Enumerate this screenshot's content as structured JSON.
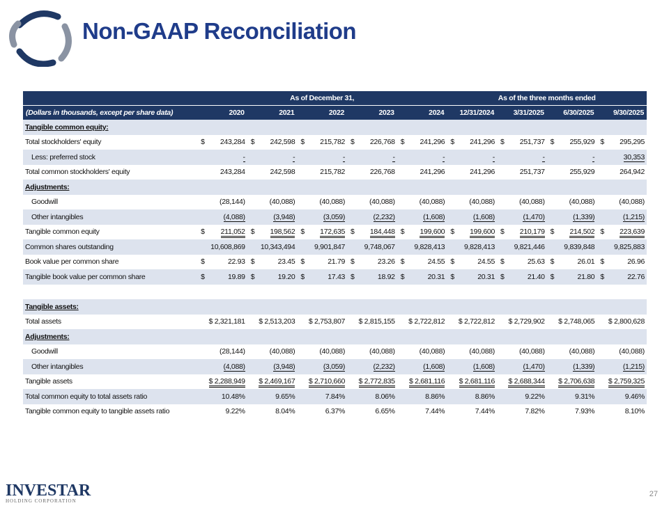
{
  "header": {
    "title": "Non-GAAP Reconciliation"
  },
  "table": {
    "groups": [
      "As of December 31,",
      "As of the three months ended"
    ],
    "unit_note": "(Dollars in thousands, except per share data)",
    "columns": [
      "2020",
      "2021",
      "2022",
      "2023",
      "2024",
      "12/31/2024",
      "3/31/2025",
      "6/30/2025",
      "9/30/2025"
    ],
    "rows": [
      {
        "label": "Tangible common equity:"
      },
      {
        "label": "Total stockholders' equity",
        "currency": "$",
        "cells": [
          "243,284",
          "242,598",
          "215,782",
          "226,768",
          "241,296",
          "241,296",
          "251,737",
          "255,929",
          "295,295"
        ]
      },
      {
        "label": "Less: preferred stock",
        "cells": [
          "-",
          "-",
          "-",
          "-",
          "-",
          "-",
          "-",
          "-",
          "30,353"
        ]
      },
      {
        "label": "Total common stockholders' equity",
        "cells": [
          "243,284",
          "242,598",
          "215,782",
          "226,768",
          "241,296",
          "241,296",
          "251,737",
          "255,929",
          "264,942"
        ]
      },
      {
        "label": "Adjustments:"
      },
      {
        "label": "Goodwill",
        "cells": [
          "(28,144)",
          "(40,088)",
          "(40,088)",
          "(40,088)",
          "(40,088)",
          "(40,088)",
          "(40,088)",
          "(40,088)",
          "(40,088)"
        ]
      },
      {
        "label": "Other intangibles",
        "cells": [
          "(4,088)",
          "(3,948)",
          "(3,059)",
          "(2,232)",
          "(1,608)",
          "(1,608)",
          "(1,470)",
          "(1,339)",
          "(1,215)"
        ]
      },
      {
        "label": "Tangible common equity",
        "currency": "$",
        "cells": [
          "211,052",
          "198,562",
          "172,635",
          "184,448",
          "199,600",
          "199,600",
          "210,179",
          "214,502",
          "223,639"
        ]
      },
      {
        "label": "Common shares outstanding",
        "cells": [
          "10,608,869",
          "10,343,494",
          "9,901,847",
          "9,748,067",
          "9,828,413",
          "9,828,413",
          "9,821,446",
          "9,839,848",
          "9,825,883"
        ]
      },
      {
        "label": "Book value per common share",
        "currency": "$",
        "cells": [
          "22.93",
          "23.45",
          "21.79",
          "23.26",
          "24.55",
          "24.55",
          "25.63",
          "26.01",
          "26.96"
        ]
      },
      {
        "label": "Tangible book value per common share",
        "currency": "$",
        "cells": [
          "19.89",
          "19.20",
          "17.43",
          "18.92",
          "20.31",
          "20.31",
          "21.40",
          "21.80",
          "22.76"
        ]
      },
      {
        "label": ""
      },
      {
        "label": "Tangible assets:"
      },
      {
        "label": "Total assets",
        "cells": [
          "$ 2,321,181",
          "$ 2,513,203",
          "$ 2,753,807",
          "$ 2,815,155",
          "$ 2,722,812",
          "$ 2,722,812",
          "$ 2,729,902",
          "$ 2,748,065",
          "$ 2,800,628"
        ]
      },
      {
        "label": "Adjustments:"
      },
      {
        "label": "Goodwill",
        "cells": [
          "(28,144)",
          "(40,088)",
          "(40,088)",
          "(40,088)",
          "(40,088)",
          "(40,088)",
          "(40,088)",
          "(40,088)",
          "(40,088)"
        ]
      },
      {
        "label": "Other intangibles",
        "cells": [
          "(4,088)",
          "(3,948)",
          "(3,059)",
          "(2,232)",
          "(1,608)",
          "(1,608)",
          "(1,470)",
          "(1,339)",
          "(1,215)"
        ]
      },
      {
        "label": "Tangible assets",
        "cells": [
          "$ 2,288,949",
          "$ 2,469,167",
          "$ 2,710,660",
          "$ 2,772,835",
          "$ 2,681,116",
          "$ 2,681,116",
          "$ 2,688,344",
          "$ 2,706,638",
          "$ 2,759,325"
        ]
      },
      {
        "label": "Total common equity to total assets ratio",
        "cells": [
          "10.48%",
          "9.65%",
          "7.84%",
          "8.06%",
          "8.86%",
          "8.86%",
          "9.22%",
          "9.31%",
          "9.46%"
        ]
      },
      {
        "label": "Tangible common equity to tangible assets ratio",
        "cells": [
          "9.22%",
          "8.04%",
          "6.37%",
          "6.65%",
          "7.44%",
          "7.44%",
          "7.82%",
          "7.93%",
          "8.10%"
        ]
      }
    ]
  },
  "footer": {
    "logo": "INVESTAR",
    "logo_sub": "HOLDING CORPORATION",
    "page": "27"
  }
}
